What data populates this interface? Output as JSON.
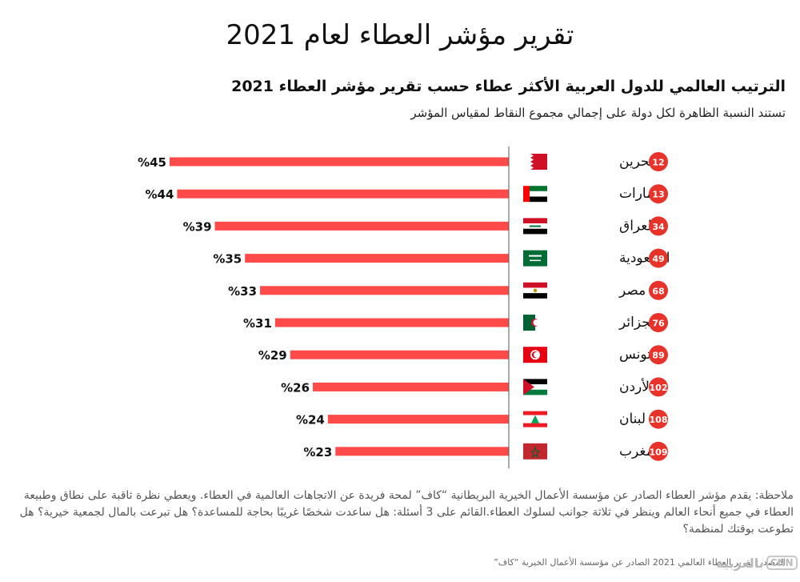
{
  "title": "تقرير مؤشر العطاء لعام 2021",
  "subtitle": "الترتيب العالمي للدول العربية الأكثر عطاء حسب تقرير مؤشر العطاء 2021",
  "caption": "تستند النسبة الظاهرة لكل دولة على إجمالي مجموع النقاط لمقياس المؤشر",
  "note": "ملاحظة: يقدم مؤشر العطاء الصادر عن مؤسسة الأعمال الخيرية البريطانية “كاف” لمحة فريدة عن الاتجاهات العالمية في العطاء. ويعطي نظرة ثاقبة على نطاق وطبيعة العطاء في جميع أنحاء العالم وينظر في ثلاثة جوانب لسلوك العطاء.القائم على 3 أسئلة: هل ساعدت شخصًا غريبًا بحاجة للمساعدة؟ هل تبرعت بالمال لجمعية خيرية؟ هل تطوعت بوقتك لمنظمة؟",
  "source": "المصدر: تقرير العطاء العالمي 2021 الصادر عن مؤسسة الأعمال الخيرية “كاف”",
  "logo": {
    "latin": "CNN",
    "arabic": "بالعربية"
  },
  "colors": {
    "bar": "#ff4a4a",
    "rank_badge": "#e8332b",
    "axis": "#555555"
  },
  "chart_data": {
    "type": "bar",
    "orientation": "horizontal",
    "categories": [
      "البحرين",
      "الإمارات",
      "العراق",
      "السعودية",
      "مصر",
      "الجزائر",
      "تونس",
      "الأردن",
      "لبنان",
      "المغرب"
    ],
    "values": [
      45,
      44,
      39,
      35,
      33,
      31,
      29,
      26,
      24,
      23
    ],
    "value_labels": [
      "%45",
      "%44",
      "%39",
      "%35",
      "%33",
      "%31",
      "%29",
      "%26",
      "%24",
      "%23"
    ],
    "ranks": [
      "12",
      "13",
      "34",
      "49",
      "68",
      "76",
      "89",
      "102",
      "108",
      "109"
    ],
    "flags": [
      "bahrain-flag",
      "uae-flag",
      "iraq-flag",
      "saudi-flag",
      "egypt-flag",
      "algeria-flag",
      "tunisia-flag",
      "jordan-flag",
      "lebanon-flag",
      "morocco-flag"
    ],
    "xlim": [
      0,
      45
    ],
    "grid": false,
    "legend": "none"
  }
}
